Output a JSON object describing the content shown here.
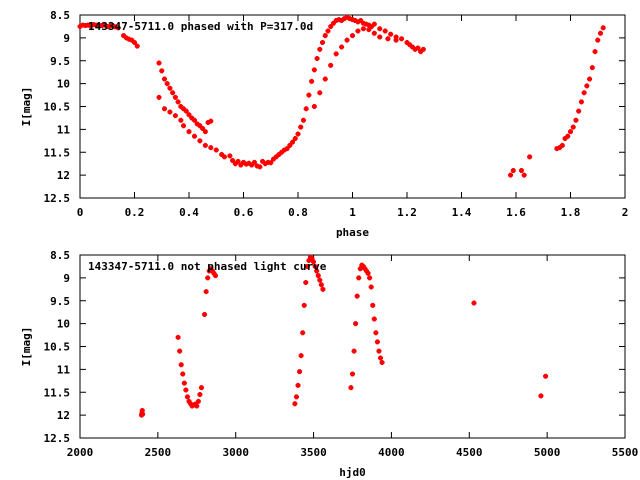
{
  "chart_data": [
    {
      "type": "scatter",
      "title": "143347-5711.0 phased with P=317.0d",
      "xlabel": "phase",
      "ylabel": "I[mag]",
      "xlim": [
        0,
        2
      ],
      "ylim": [
        12.5,
        8.5
      ],
      "y_reversed": true,
      "x_ticks": [
        0,
        0.2,
        0.4,
        0.6,
        0.8,
        1,
        1.2,
        1.4,
        1.6,
        1.8,
        2
      ],
      "x_tick_labels": [
        "0",
        "0.2",
        "0.4",
        "0.6",
        "0.8",
        "1",
        "1.2",
        "1.4",
        "1.6",
        "1.8",
        "2"
      ],
      "y_ticks": [
        8.5,
        9,
        9.5,
        10,
        10.5,
        11,
        11.5,
        12,
        12.5
      ],
      "y_tick_labels": [
        "8.5",
        "9",
        "9.5",
        "10",
        "10.5",
        "11",
        "11.5",
        "12",
        "12.5"
      ],
      "grid": false,
      "color": "#ff0000",
      "marker": "cross",
      "series": [
        {
          "x": [
            0.0,
            0.01,
            0.02,
            0.03,
            0.04,
            0.05,
            0.06,
            0.07,
            0.08,
            0.09,
            0.1,
            0.11,
            0.12,
            0.13,
            0.14,
            0.16,
            0.17,
            0.18,
            0.19,
            0.2,
            0.21,
            0.29,
            0.3,
            0.31,
            0.32,
            0.33,
            0.34,
            0.35,
            0.36,
            0.37,
            0.38,
            0.39,
            0.4,
            0.41,
            0.42,
            0.43,
            0.44,
            0.45,
            0.46,
            0.47,
            0.48,
            0.29,
            0.31,
            0.33,
            0.35,
            0.37,
            0.38,
            0.4,
            0.42,
            0.44,
            0.46,
            0.48,
            0.5,
            0.52,
            0.53,
            0.55,
            0.56,
            0.57,
            0.58,
            0.59,
            0.6,
            0.61,
            0.62,
            0.63,
            0.64,
            0.65,
            0.66,
            0.67,
            0.68,
            0.69,
            0.7,
            0.71,
            0.72,
            0.73,
            0.74,
            0.75,
            0.76,
            0.77,
            0.78,
            0.79,
            0.8,
            0.81,
            0.82,
            0.83,
            0.84,
            0.85,
            0.86,
            0.87,
            0.88,
            0.89,
            0.9,
            0.91,
            0.92,
            0.93,
            0.94,
            0.95,
            0.96,
            0.97,
            0.98,
            0.99,
            1.0,
            1.01,
            1.02,
            1.03,
            1.04,
            1.05,
            1.06,
            1.07,
            1.08,
            1.1,
            1.12,
            1.14,
            1.16,
            1.18,
            1.2,
            1.21,
            1.22,
            1.23,
            1.24,
            1.25,
            1.26,
            0.86,
            0.88,
            0.9,
            0.92,
            0.94,
            0.96,
            0.98,
            1.0,
            1.02,
            1.04,
            1.06,
            1.08,
            1.1,
            1.13,
            1.16,
            1.58,
            1.59,
            1.62,
            1.63,
            1.65,
            1.75,
            1.76,
            1.77,
            1.78,
            1.79,
            1.8,
            1.81,
            1.82,
            1.83,
            1.84,
            1.85,
            1.86,
            1.87,
            1.88,
            1.89,
            1.9,
            1.91,
            1.92
          ],
          "y": [
            8.75,
            8.72,
            8.73,
            8.72,
            8.74,
            8.71,
            8.72,
            8.73,
            8.73,
            8.72,
            8.75,
            8.74,
            8.73,
            8.76,
            8.78,
            8.95,
            9.0,
            9.03,
            9.05,
            9.1,
            9.18,
            9.55,
            9.72,
            9.9,
            10.0,
            10.1,
            10.2,
            10.3,
            10.4,
            10.5,
            10.55,
            10.6,
            10.68,
            10.75,
            10.8,
            10.88,
            10.92,
            10.98,
            11.05,
            10.85,
            10.82,
            10.3,
            10.55,
            10.62,
            10.7,
            10.8,
            10.92,
            11.05,
            11.15,
            11.25,
            11.35,
            11.4,
            11.45,
            11.55,
            11.6,
            11.58,
            11.68,
            11.75,
            11.7,
            11.78,
            11.72,
            11.76,
            11.74,
            11.78,
            11.72,
            11.8,
            11.82,
            11.7,
            11.75,
            11.72,
            11.73,
            11.65,
            11.6,
            11.55,
            11.5,
            11.45,
            11.42,
            11.35,
            11.28,
            11.2,
            11.1,
            10.95,
            10.8,
            10.55,
            10.25,
            9.95,
            9.7,
            9.45,
            9.25,
            9.1,
            8.95,
            8.85,
            8.75,
            8.68,
            8.62,
            8.6,
            8.62,
            8.58,
            8.55,
            8.58,
            8.6,
            8.62,
            8.65,
            8.62,
            8.68,
            8.7,
            8.72,
            8.75,
            8.7,
            8.8,
            8.85,
            8.92,
            8.98,
            9.02,
            9.1,
            9.15,
            9.2,
            9.25,
            9.22,
            9.3,
            9.25,
            10.5,
            10.2,
            9.9,
            9.6,
            9.35,
            9.2,
            9.05,
            8.95,
            8.85,
            8.8,
            8.82,
            8.9,
            8.98,
            9.02,
            9.05,
            12.0,
            11.9,
            11.9,
            12.0,
            11.6,
            11.42,
            11.4,
            11.35,
            11.2,
            11.15,
            11.05,
            10.95,
            10.8,
            10.6,
            10.4,
            10.2,
            10.05,
            9.9,
            9.65,
            9.3,
            9.05,
            8.9,
            8.78
          ]
        }
      ]
    },
    {
      "type": "scatter",
      "title": "143347-5711.0 not phased light curve",
      "xlabel": "hjd0",
      "ylabel": "I[mag]",
      "xlim": [
        2000,
        5500
      ],
      "ylim": [
        12.5,
        8.5
      ],
      "y_reversed": true,
      "x_ticks": [
        2000,
        2500,
        3000,
        3500,
        4000,
        4500,
        5000,
        5500
      ],
      "x_tick_labels": [
        "2000",
        "2500",
        "3000",
        "3500",
        "4000",
        "4500",
        "5000",
        "5500"
      ],
      "y_ticks": [
        8.5,
        9,
        9.5,
        10,
        10.5,
        11,
        11.5,
        12,
        12.5
      ],
      "y_tick_labels": [
        "8.5",
        "9",
        "9.5",
        "10",
        "10.5",
        "11",
        "11.5",
        "12",
        "12.5"
      ],
      "grid": false,
      "color": "#ff0000",
      "marker": "cross",
      "series": [
        {
          "x": [
            2395,
            2398,
            2400,
            2402,
            2630,
            2640,
            2650,
            2660,
            2670,
            2680,
            2690,
            2700,
            2710,
            2720,
            2730,
            2740,
            2750,
            2760,
            2770,
            2780,
            2800,
            2810,
            2820,
            2830,
            2840,
            2850,
            2860,
            2870,
            3380,
            3390,
            3400,
            3410,
            3420,
            3430,
            3440,
            3450,
            3460,
            3470,
            3480,
            3490,
            3500,
            3510,
            3520,
            3530,
            3540,
            3550,
            3560,
            3740,
            3750,
            3760,
            3770,
            3780,
            3790,
            3800,
            3810,
            3820,
            3830,
            3840,
            3850,
            3860,
            3870,
            3880,
            3890,
            3900,
            3910,
            3920,
            3930,
            3940,
            4530,
            4960,
            4990
          ],
          "y": [
            12.0,
            11.95,
            11.9,
            11.98,
            10.3,
            10.6,
            10.9,
            11.1,
            11.3,
            11.45,
            11.6,
            11.7,
            11.75,
            11.8,
            11.78,
            11.76,
            11.8,
            11.7,
            11.55,
            11.4,
            9.8,
            9.3,
            9.0,
            8.85,
            8.8,
            8.85,
            8.9,
            8.95,
            11.75,
            11.6,
            11.35,
            11.05,
            10.7,
            10.2,
            9.6,
            9.1,
            8.75,
            8.62,
            8.55,
            8.58,
            8.65,
            8.75,
            8.85,
            8.95,
            9.05,
            9.15,
            9.25,
            11.4,
            11.1,
            10.6,
            10.0,
            9.4,
            9.0,
            8.8,
            8.72,
            8.75,
            8.8,
            8.85,
            8.9,
            9.0,
            9.2,
            9.6,
            9.9,
            10.2,
            10.4,
            10.6,
            10.75,
            10.85,
            9.55,
            11.58,
            11.15
          ]
        }
      ]
    }
  ]
}
